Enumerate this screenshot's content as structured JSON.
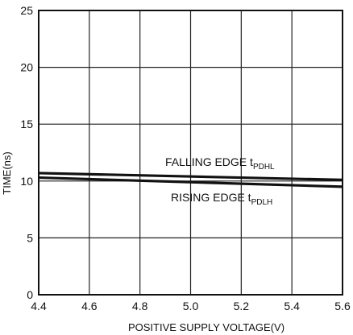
{
  "chart_data": {
    "type": "line",
    "title": "",
    "xlabel": "POSITIVE SUPPLY VOLTAGE(V)",
    "ylabel": "TIME(ns)",
    "xlim": [
      4.4,
      5.6
    ],
    "ylim": [
      0,
      25
    ],
    "x_ticks": [
      "4.4",
      "4.6",
      "4.8",
      "5.0",
      "5.2",
      "5.4",
      "5.6"
    ],
    "y_ticks": [
      "0",
      "5",
      "10",
      "15",
      "20",
      "25"
    ],
    "grid": true,
    "legend": "none",
    "series": [
      {
        "name": "FALLING EDGE",
        "subscript": "PDHL",
        "x": [
          4.4,
          5.6
        ],
        "y": [
          10.7,
          10.1
        ]
      },
      {
        "name": "RISING EDGE",
        "subscript": "PDLH",
        "x": [
          4.4,
          5.6
        ],
        "y": [
          10.3,
          9.5
        ]
      }
    ],
    "annotations": [
      {
        "text": "FALLING EDGE t",
        "sub": "PDHL"
      },
      {
        "text": "RISING EDGE t",
        "sub": "PDLH"
      }
    ]
  }
}
